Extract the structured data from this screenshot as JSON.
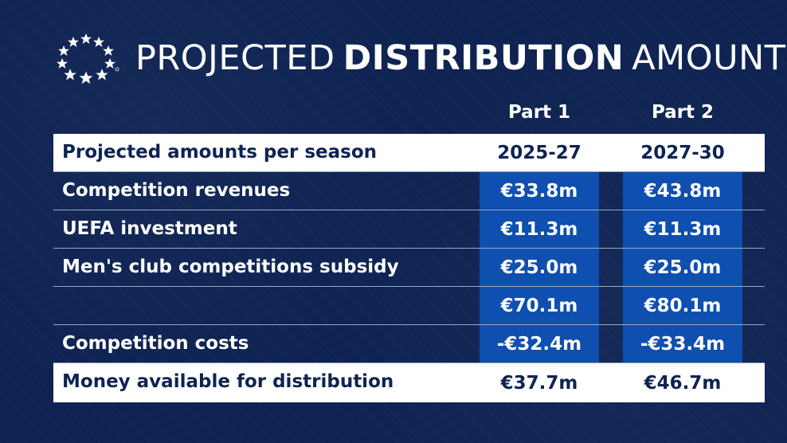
{
  "header": {
    "title_light_1": "PROJECTED",
    "title_bold": "DISTRIBUTION",
    "title_light_2": "AMOUNTS",
    "logo_icon": "star-ball-icon"
  },
  "columns": {
    "part1": "Part 1",
    "part2": "Part 2"
  },
  "rows": [
    {
      "label": "Projected amounts per season",
      "part1": "2025-27",
      "part2": "2027-30"
    },
    {
      "label": "Competition revenues",
      "part1": "€33.8m",
      "part2": "€43.8m"
    },
    {
      "label": "UEFA investment",
      "part1": "€11.3m",
      "part2": "€11.3m"
    },
    {
      "label": "Men's club competitions subsidy",
      "part1": "€25.0m",
      "part2": "€25.0m"
    },
    {
      "label": "",
      "part1": "€70.1m",
      "part2": "€80.1m"
    },
    {
      "label": "Competition costs",
      "part1": "-€32.4m",
      "part2": "-€33.4m"
    },
    {
      "label": "Money available for distribution",
      "part1": "€37.7m",
      "part2": "€46.7m"
    }
  ],
  "colors": {
    "background": "#0e2352",
    "accent_blue": "#0e4fb0",
    "text_white": "#ffffff",
    "text_navy": "#0e2352"
  }
}
